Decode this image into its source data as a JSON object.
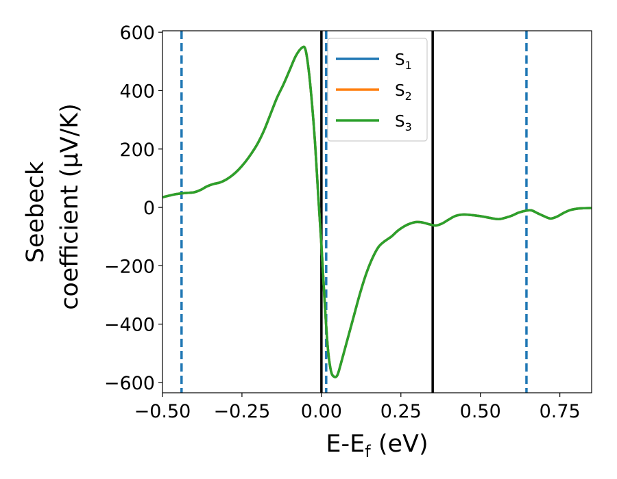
{
  "chart_data": {
    "type": "line",
    "xlabel": "E-E",
    "xlabel_subscript": "f",
    "xlabel_unit": " (eV)",
    "ylabel_line1": "Seebeck",
    "ylabel_line2": "coefficient  (μV/K)",
    "xlim": [
      -0.5,
      0.85
    ],
    "ylim": [
      -635,
      605
    ],
    "xticks": [
      -0.5,
      -0.25,
      0.0,
      0.25,
      0.5,
      0.75
    ],
    "xtick_labels": [
      "−0.50",
      "−0.25",
      "0.00",
      "0.25",
      "0.50",
      "0.75"
    ],
    "yticks": [
      -600,
      -400,
      -200,
      0,
      200,
      400,
      600
    ],
    "ytick_labels": [
      "−600",
      "−400",
      "−200",
      "0",
      "200",
      "400",
      "600"
    ],
    "grid": false,
    "legend_position": "top-right",
    "series": [
      {
        "name": "S",
        "subscript": "1",
        "color": "#1f77b4"
      },
      {
        "name": "S",
        "subscript": "2",
        "color": "#ff7f0e"
      },
      {
        "name": "S",
        "subscript": "3",
        "color": "#2ca02c"
      }
    ],
    "curve_x": [
      -0.5,
      -0.46,
      -0.44,
      -0.42,
      -0.4,
      -0.38,
      -0.36,
      -0.34,
      -0.32,
      -0.3,
      -0.28,
      -0.26,
      -0.24,
      -0.22,
      -0.2,
      -0.18,
      -0.16,
      -0.14,
      -0.12,
      -0.1,
      -0.08,
      -0.06,
      -0.05,
      -0.04,
      -0.03,
      -0.02,
      -0.01,
      0.0,
      0.01,
      0.02,
      0.03,
      0.04,
      0.05,
      0.06,
      0.08,
      0.1,
      0.12,
      0.14,
      0.16,
      0.18,
      0.2,
      0.22,
      0.24,
      0.26,
      0.28,
      0.3,
      0.32,
      0.34,
      0.36,
      0.38,
      0.4,
      0.42,
      0.44,
      0.46,
      0.5,
      0.54,
      0.56,
      0.58,
      0.6,
      0.62,
      0.64,
      0.66,
      0.68,
      0.7,
      0.72,
      0.74,
      0.76,
      0.78,
      0.8,
      0.82,
      0.85
    ],
    "curve_y": [
      35,
      45,
      48,
      50,
      52,
      60,
      72,
      80,
      85,
      95,
      110,
      130,
      155,
      185,
      220,
      265,
      320,
      375,
      420,
      470,
      520,
      548,
      540,
      470,
      360,
      220,
      40,
      -130,
      -320,
      -480,
      -560,
      -580,
      -575,
      -540,
      -460,
      -380,
      -300,
      -230,
      -175,
      -135,
      -115,
      -100,
      -80,
      -65,
      -55,
      -50,
      -52,
      -58,
      -62,
      -55,
      -42,
      -30,
      -25,
      -25,
      -30,
      -38,
      -40,
      -35,
      -28,
      -18,
      -12,
      -10,
      -20,
      -30,
      -38,
      -32,
      -20,
      -10,
      -5,
      -3,
      -2
    ],
    "solid_vlines": [
      0.0,
      0.35
    ],
    "dashed_vlines": [
      -0.44,
      0.015,
      0.645
    ],
    "dashed_color": "#1f77b4",
    "solid_color": "#000000"
  }
}
